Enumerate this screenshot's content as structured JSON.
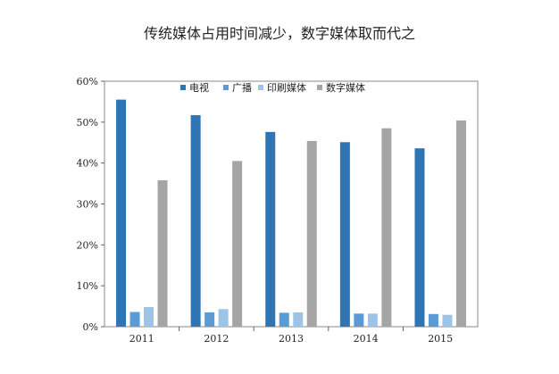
{
  "chart_data": {
    "type": "bar",
    "title": "传统媒体占用时间减少，数字媒体取而代之",
    "categories": [
      "2011",
      "2012",
      "2013",
      "2014",
      "2015"
    ],
    "series": [
      {
        "name": "电视",
        "color": "#2e75b6",
        "values": [
          55.5,
          51.7,
          47.6,
          45.1,
          43.6
        ]
      },
      {
        "name": "广播",
        "color": "#5b9bd5",
        "values": [
          3.6,
          3.5,
          3.4,
          3.2,
          3.1
        ]
      },
      {
        "name": "印刷媒体",
        "color": "#9dc3e6",
        "values": [
          4.8,
          4.3,
          3.5,
          3.2,
          2.9
        ]
      },
      {
        "name": "数字媒体",
        "color": "#a5a5a5",
        "values": [
          35.8,
          40.5,
          45.4,
          48.5,
          50.4
        ]
      }
    ],
    "yticks": [
      "0%",
      "10%",
      "20%",
      "30%",
      "40%",
      "50%",
      "60%"
    ],
    "ylim": [
      0,
      60
    ],
    "legend_position": "top",
    "grid": false
  }
}
